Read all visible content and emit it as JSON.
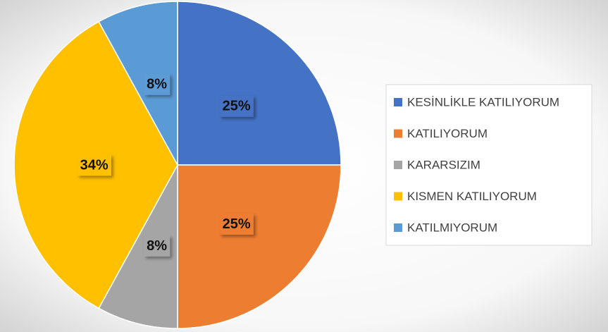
{
  "chart_data": {
    "type": "pie",
    "categories": [
      "KESİNLİKLE KATILIYORUM",
      "KATILIYORUM",
      "KARARSIZIM",
      "KISMEN KATILIYORUM",
      "KATILMIYORUM"
    ],
    "values": [
      25,
      25,
      8,
      34,
      8
    ],
    "value_labels": [
      "25%",
      "25%",
      "8%",
      "34%",
      "8%"
    ],
    "colors": [
      "#4472c4",
      "#ed7d31",
      "#a5a5a5",
      "#ffc000",
      "#5b9bd5"
    ],
    "legend": "right"
  }
}
